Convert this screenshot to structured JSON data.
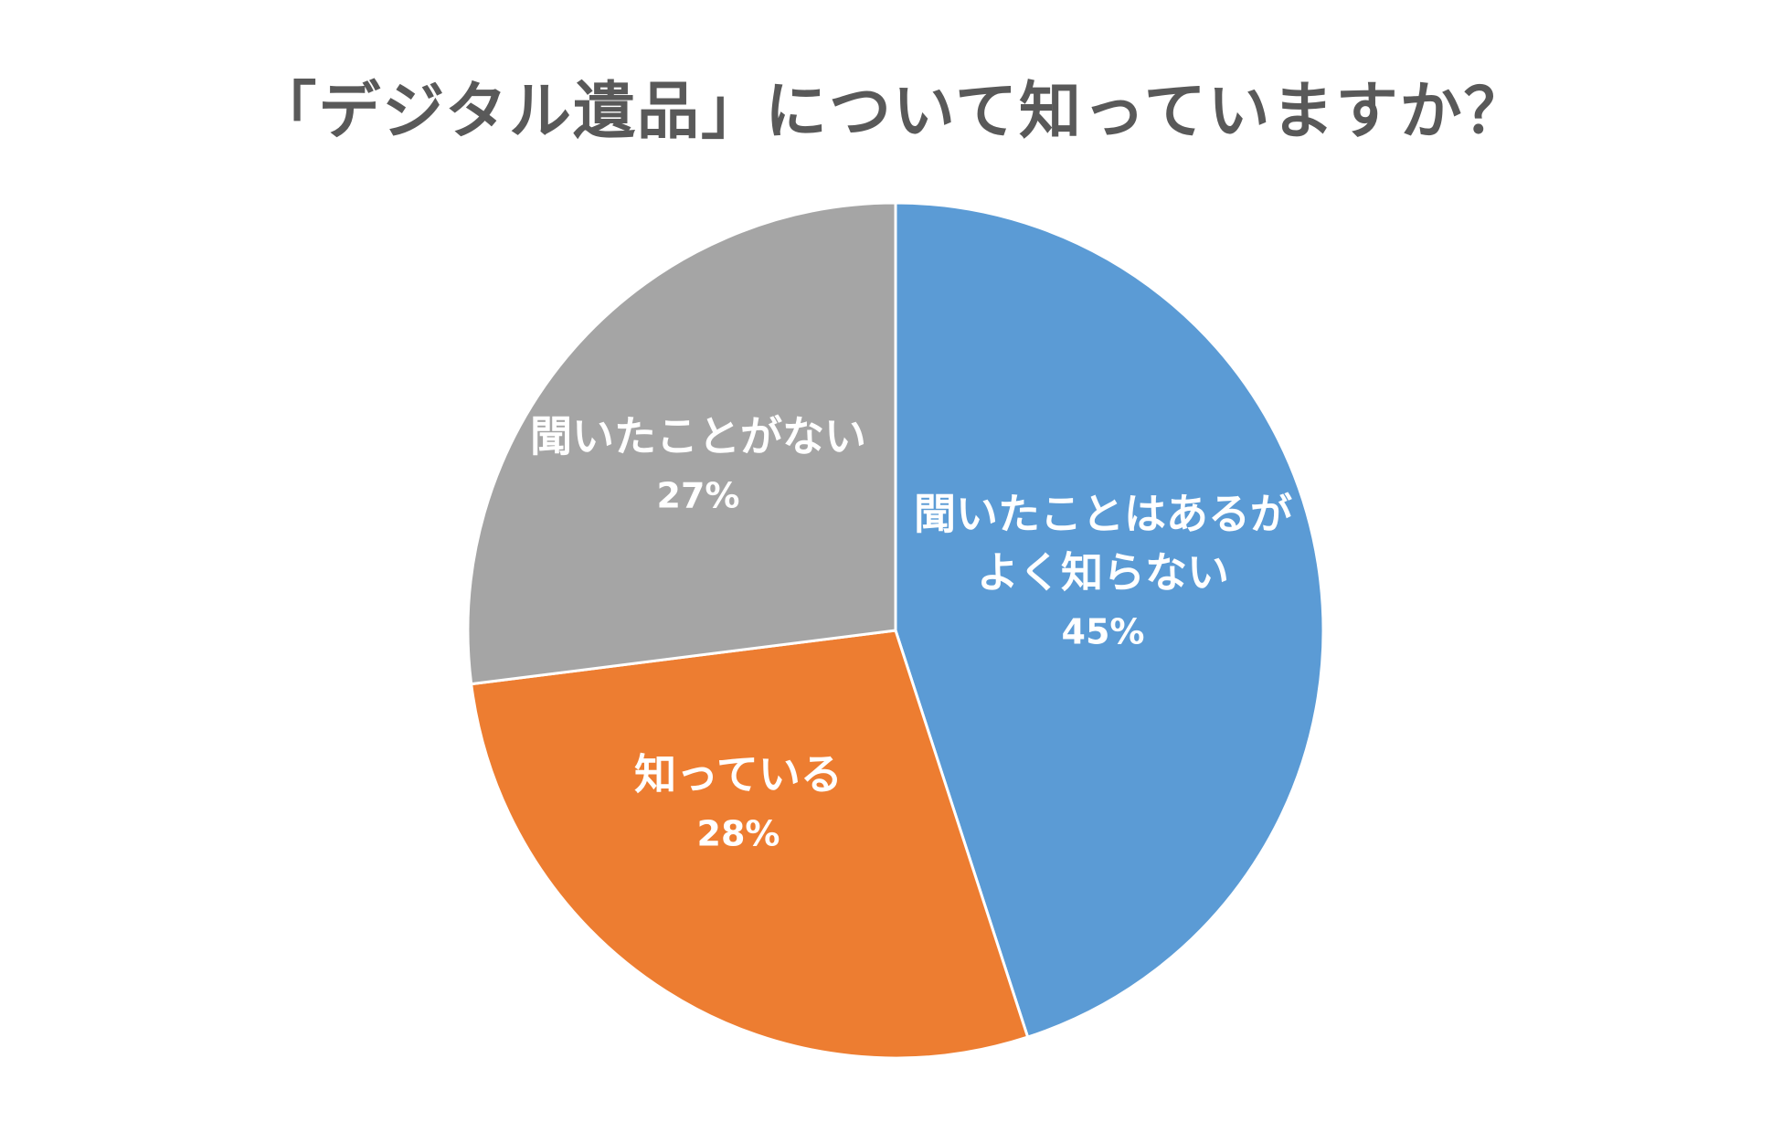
{
  "chart_data": {
    "type": "pie",
    "title": "「デジタル遺品」について知っていますか？",
    "start_angle_deg": 0,
    "direction": "clockwise",
    "slices": [
      {
        "label_lines": [
          "聞いたことはあるが",
          "よく知らない"
        ],
        "value": 45,
        "value_label": "45%",
        "color": "#5B9BD5"
      },
      {
        "label_lines": [
          "知っている"
        ],
        "value": 28,
        "value_label": "28%",
        "color": "#ED7D31"
      },
      {
        "label_lines": [
          "聞いたことがない"
        ],
        "value": 27,
        "value_label": "27%",
        "color": "#A5A5A5"
      }
    ],
    "legend": "none",
    "slice_border_color": "#FFFFFF"
  }
}
